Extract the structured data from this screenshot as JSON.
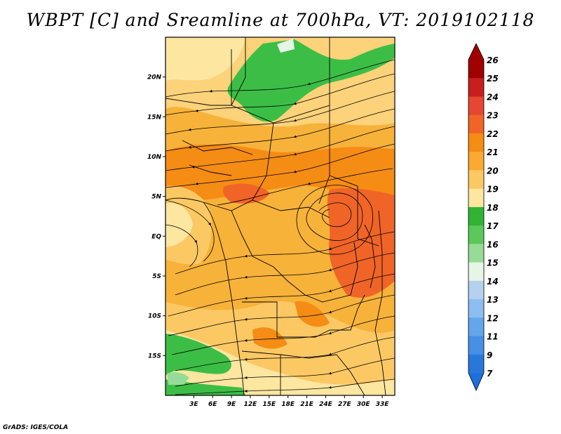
{
  "title": "WBPT [C] and Sreamline at 700hPa, VT: 2019102118",
  "footer": "GrADS: IGES/COLA",
  "map": {
    "lon_range": [
      -1.5,
      35
    ],
    "lat_range": [
      -20,
      25
    ],
    "lat_ticks": [
      {
        "value": 20,
        "label": "20N"
      },
      {
        "value": 15,
        "label": "15N"
      },
      {
        "value": 10,
        "label": "10N"
      },
      {
        "value": 5,
        "label": "5N"
      },
      {
        "value": 0,
        "label": "EQ"
      },
      {
        "value": -5,
        "label": "5S"
      },
      {
        "value": -10,
        "label": "10S"
      },
      {
        "value": -15,
        "label": "15S"
      }
    ],
    "lon_ticks": [
      {
        "value": 3,
        "label": "3E"
      },
      {
        "value": 6,
        "label": "6E"
      },
      {
        "value": 9,
        "label": "9E"
      },
      {
        "value": 12,
        "label": "12E"
      },
      {
        "value": 15,
        "label": "15E"
      },
      {
        "value": 18,
        "label": "18E"
      },
      {
        "value": 21,
        "label": "21E"
      },
      {
        "value": 24,
        "label": "24E"
      },
      {
        "value": 27,
        "label": "27E"
      },
      {
        "value": 30,
        "label": "30E"
      },
      {
        "value": 33,
        "label": "33E"
      }
    ],
    "field": "Wet-bulb potential temperature (C)",
    "level": "700hPa",
    "valid_time": "2019102118"
  },
  "colorbar": {
    "labels": [
      "26",
      "25",
      "24",
      "23",
      "22",
      "21",
      "20",
      "19",
      "18",
      "17",
      "16",
      "15",
      "14",
      "13",
      "12",
      "11",
      "9",
      "7"
    ],
    "colors": [
      "#a00000",
      "#c81e1e",
      "#e64632",
      "#f06428",
      "#f58c14",
      "#faaa32",
      "#fcc864",
      "#fde6a0",
      "#32b432",
      "#5ac85a",
      "#96dc96",
      "#e6f5e6",
      "#b4d2f0",
      "#8cbef0",
      "#64a5eb",
      "#4690e6",
      "#2878dc"
    ],
    "upper_arrow_color": "#a00000",
    "lower_arrow_color": "#1e6edc"
  }
}
